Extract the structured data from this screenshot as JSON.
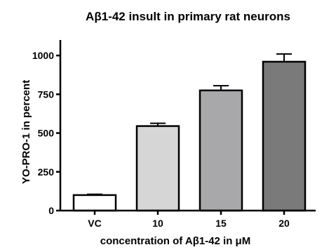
{
  "chart_data": {
    "type": "bar",
    "title": "Aβ1-42 insult in primary rat neurons",
    "xlabel": "concentration of Aβ1-42 in μM",
    "ylabel": "YO-PRO-1 in percent",
    "categories": [
      "VC",
      "10",
      "15",
      "20"
    ],
    "values": [
      100,
      545,
      775,
      960
    ],
    "error": [
      5,
      18,
      30,
      50
    ],
    "ylim": [
      0,
      1100
    ],
    "yticks": [
      0,
      250,
      500,
      750,
      1000
    ],
    "bar_colors": [
      "#ffffff",
      "#d6d6d6",
      "#a8a8ab",
      "#7a7a7a"
    ],
    "grid": false,
    "legend": "none"
  }
}
